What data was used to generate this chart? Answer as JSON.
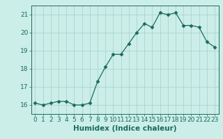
{
  "x": [
    0,
    1,
    2,
    3,
    4,
    5,
    6,
    7,
    8,
    9,
    10,
    11,
    12,
    13,
    14,
    15,
    16,
    17,
    18,
    19,
    20,
    21,
    22,
    23
  ],
  "y": [
    16.1,
    16.0,
    16.1,
    16.2,
    16.2,
    16.0,
    16.0,
    16.1,
    17.3,
    18.1,
    18.8,
    18.8,
    19.4,
    20.0,
    20.5,
    20.3,
    21.1,
    21.0,
    21.1,
    20.4,
    20.4,
    20.3,
    19.5,
    19.2
  ],
  "line_color": "#1a6b5a",
  "marker": "D",
  "marker_size": 2.5,
  "bg_color": "#cceee8",
  "grid_color": "#aad4ce",
  "xlabel": "Humidex (Indice chaleur)",
  "ylim": [
    15.5,
    21.5
  ],
  "xlim": [
    -0.5,
    23.5
  ],
  "yticks": [
    16,
    17,
    18,
    19,
    20,
    21
  ],
  "xticks": [
    0,
    1,
    2,
    3,
    4,
    5,
    6,
    7,
    8,
    9,
    10,
    11,
    12,
    13,
    14,
    15,
    16,
    17,
    18,
    19,
    20,
    21,
    22,
    23
  ],
  "tick_color": "#1a6b5a",
  "label_fontsize": 7.5,
  "tick_fontsize": 6.5
}
